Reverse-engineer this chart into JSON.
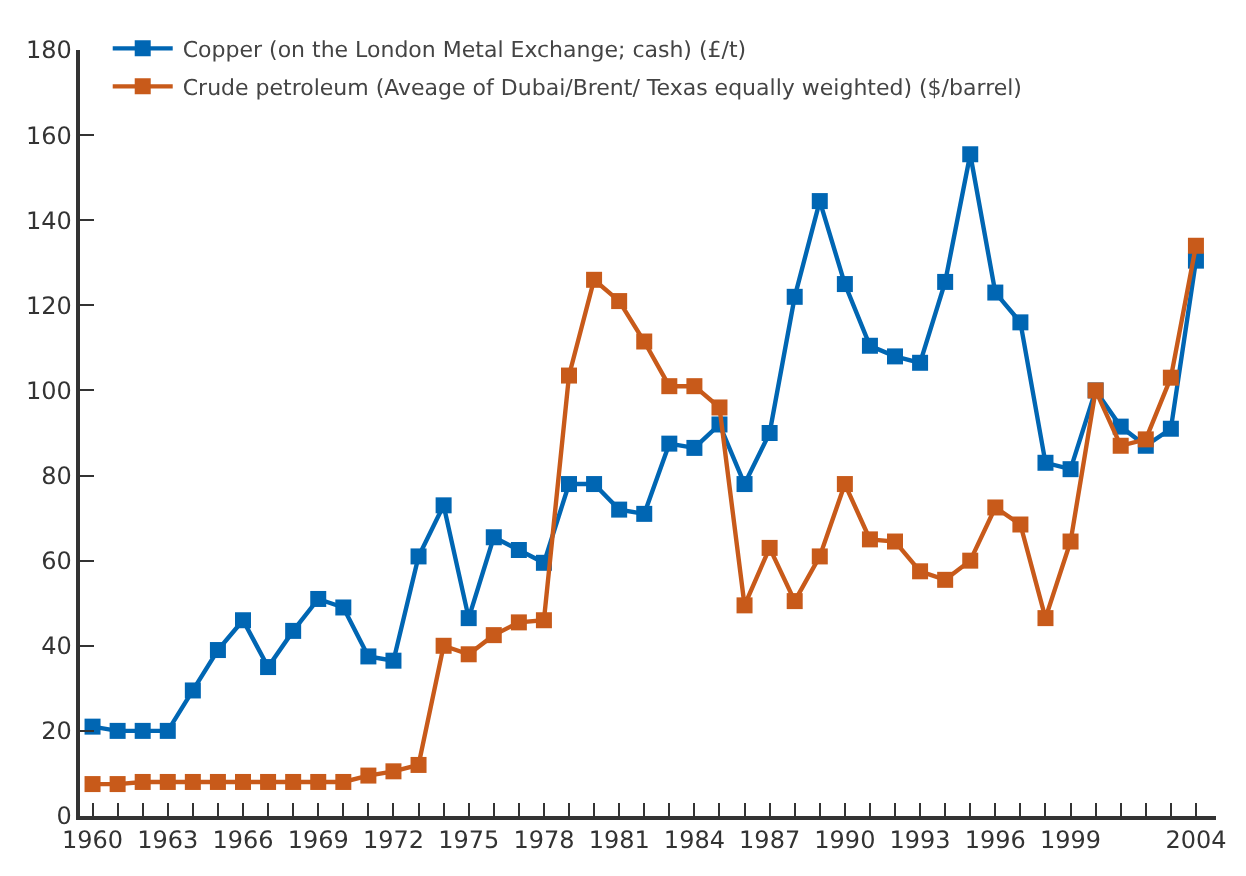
{
  "chart_data": {
    "type": "line",
    "x": [
      1960,
      1961,
      1962,
      1963,
      1964,
      1965,
      1966,
      1967,
      1968,
      1969,
      1970,
      1971,
      1972,
      1973,
      1974,
      1975,
      1976,
      1977,
      1978,
      1979,
      1980,
      1981,
      1982,
      1983,
      1984,
      1985,
      1986,
      1987,
      1988,
      1989,
      1990,
      1991,
      1992,
      1993,
      1994,
      1995,
      1996,
      1997,
      1998,
      1999,
      2000,
      2001,
      2002,
      2003,
      2004
    ],
    "series": [
      {
        "name": "Copper (on the London Metal Exchange; cash) (£/t)",
        "color": "#0066b3",
        "values": [
          21,
          20,
          20,
          20,
          29.5,
          39,
          46,
          35,
          43.5,
          51,
          49,
          37.5,
          36.5,
          61,
          73,
          46.5,
          65.5,
          62.5,
          59.5,
          78,
          78,
          72,
          71,
          87.5,
          86.5,
          92,
          78,
          90,
          122,
          144.5,
          125,
          110.5,
          108,
          106.5,
          125.5,
          155.5,
          123,
          116,
          83,
          81.5,
          100,
          91.5,
          87,
          91,
          130.5
        ]
      },
      {
        "name": "Crude petroleum (Aveage of Dubai/Brent/ Texas equally weighted) ($/barrel)",
        "color": "#c85a1a",
        "values": [
          7.5,
          7.5,
          8,
          8,
          8,
          8,
          8,
          8,
          8,
          8,
          8,
          9.5,
          10.5,
          12,
          40,
          38,
          42.5,
          45.5,
          46,
          103.5,
          126,
          121,
          111.5,
          101,
          101,
          96,
          49.5,
          63,
          50.5,
          61,
          78,
          65,
          64.5,
          57.5,
          55.5,
          60,
          72.5,
          68.5,
          46.5,
          64.5,
          100,
          87,
          88.5,
          103,
          134
        ]
      }
    ],
    "xlim": [
      1959.5,
      2004.8
    ],
    "xticks": [
      1960,
      {
        "value": 1961,
        "label": null
      },
      {
        "value": 1962,
        "label": null
      },
      1963,
      {
        "value": 1964,
        "label": null
      },
      {
        "value": 1965,
        "label": null
      },
      1966,
      {
        "value": 1967,
        "label": null
      },
      {
        "value": 1968,
        "label": null
      },
      1969,
      {
        "value": 1970,
        "label": null
      },
      {
        "value": 1971,
        "label": null
      },
      1972,
      {
        "value": 1973,
        "label": null
      },
      {
        "value": 1974,
        "label": null
      },
      1975,
      {
        "value": 1976,
        "label": null
      },
      {
        "value": 1977,
        "label": null
      },
      1978,
      {
        "value": 1979,
        "label": null
      },
      {
        "value": 1980,
        "label": null
      },
      1981,
      {
        "value": 1982,
        "label": null
      },
      {
        "value": 1983,
        "label": null
      },
      1984,
      {
        "value": 1985,
        "label": null
      },
      {
        "value": 1986,
        "label": null
      },
      1987,
      {
        "value": 1988,
        "label": null
      },
      {
        "value": 1989,
        "label": null
      },
      1990,
      {
        "value": 1991,
        "label": null
      },
      {
        "value": 1992,
        "label": null
      },
      1993,
      {
        "value": 1994,
        "label": null
      },
      {
        "value": 1995,
        "label": null
      },
      1996,
      {
        "value": 1997,
        "label": null
      },
      {
        "value": 1998,
        "label": null
      },
      1999,
      {
        "value": 2000,
        "label": null
      },
      {
        "value": 2001,
        "label": null
      },
      {
        "value": 2002,
        "label": null
      },
      {
        "value": 2003,
        "label": null
      },
      2004
    ],
    "ylim": [
      0,
      180
    ],
    "yticks": [
      0,
      20,
      40,
      60,
      80,
      100,
      120,
      140,
      160,
      180
    ],
    "legend": "top left",
    "marker": "square",
    "line_style": "solid"
  }
}
